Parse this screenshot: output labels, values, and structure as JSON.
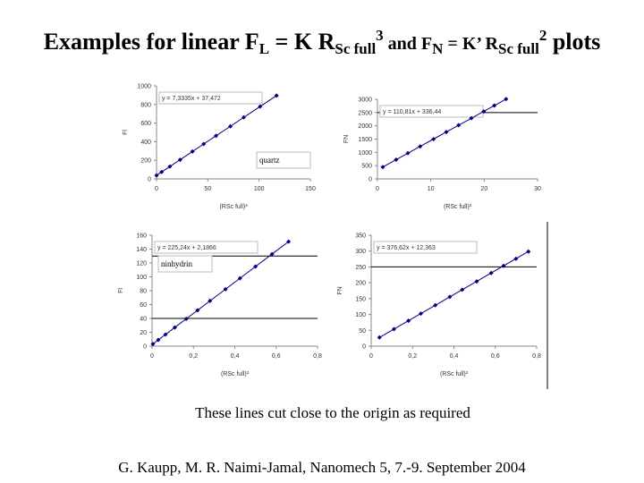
{
  "slide": {
    "title": [
      "Examples for linear F",
      "L",
      " = K R",
      "Sc full",
      "3",
      "  and   F",
      "N",
      " = K’ R",
      "Sc full",
      "2",
      " plots"
    ],
    "caption": "These lines cut close to the origin as required",
    "footer": "G. Kaupp, M. R. Naimi-Jamal, Nanomech 5, 7.-9. September 2004"
  },
  "chart_data": [
    {
      "type": "scatter",
      "equation": "y = 7,3335x + 37,472",
      "annotation": "quartz",
      "ylabel": "Fl",
      "xlabel": "(RSc full)³",
      "x": [
        0,
        5,
        13,
        23,
        35,
        46,
        58,
        72,
        85,
        101,
        117
      ],
      "values": [
        37.5,
        74,
        133,
        206,
        294,
        375,
        463,
        565,
        661,
        778,
        895
      ],
      "color": "#000080",
      "xlim": [
        0,
        150
      ],
      "xticks": [
        0,
        50,
        100,
        150
      ],
      "ylim": [
        0,
        1000
      ],
      "yticks": [
        0,
        200,
        400,
        600,
        800,
        1000
      ],
      "hlines": []
    },
    {
      "type": "scatter",
      "equation": "y = 110,81x + 336,44",
      "ylabel": "FN",
      "xlabel": "(RSc full)²",
      "x": [
        1,
        3.5,
        5.7,
        8,
        10.5,
        12.9,
        15.2,
        17.6,
        19.9,
        21.9,
        24.1
      ],
      "values": [
        447,
        724,
        968,
        1223,
        1500,
        1766,
        2021,
        2287,
        2541,
        2763,
        3007
      ],
      "color": "#000080",
      "xlim": [
        0,
        30
      ],
      "xticks": [
        0,
        10,
        20,
        30
      ],
      "ylim": [
        0,
        3000
      ],
      "yticks": [
        0,
        500,
        1000,
        1500,
        2000,
        2500,
        3000
      ],
      "hlines": [
        2500
      ]
    },
    {
      "type": "scatter",
      "equation": "y = 225,24x + 2,1866",
      "annotation": "ninhydrin",
      "ylabel": "Fl",
      "xlabel": "(RSc full)²",
      "x": [
        0.004,
        0.03,
        0.065,
        0.11,
        0.165,
        0.22,
        0.28,
        0.355,
        0.425,
        0.5,
        0.58,
        0.66
      ],
      "values": [
        3.1,
        9,
        16.8,
        27,
        39.4,
        51.7,
        65.3,
        82.1,
        97.9,
        114.8,
        132.8,
        150.8
      ],
      "color": "#000080",
      "xlim": [
        0,
        0.8
      ],
      "xticks": [
        0,
        {
          "value": 0.2,
          "label": "0,2"
        },
        {
          "value": 0.4,
          "label": "0,4"
        },
        {
          "value": 0.6,
          "label": "0,6"
        },
        {
          "value": 0.8,
          "label": "0,8"
        }
      ],
      "ylim": [
        0,
        160
      ],
      "yticks": [
        0,
        20,
        40,
        60,
        80,
        100,
        120,
        140,
        160
      ],
      "hlines": [
        130,
        40
      ]
    },
    {
      "type": "scatter",
      "equation": "y = 376,62x + 12,363",
      "ylabel": "FN",
      "xlabel": "(RSc full)²",
      "x": [
        0.04,
        0.11,
        0.18,
        0.24,
        0.31,
        0.38,
        0.44,
        0.51,
        0.58,
        0.64,
        0.7,
        0.76
      ],
      "values": [
        27.4,
        53.8,
        80.2,
        102.7,
        129.1,
        155.5,
        178.1,
        204.4,
        230.8,
        253.4,
        276,
        298.6
      ],
      "color": "#000080",
      "xlim": [
        0,
        0.8
      ],
      "xticks": [
        0,
        {
          "value": 0.2,
          "label": "0,2"
        },
        {
          "value": 0.4,
          "label": "0,4"
        },
        {
          "value": 0.6,
          "label": "0,6"
        },
        {
          "value": 0.8,
          "label": "0,8"
        }
      ],
      "ylim": [
        0,
        350
      ],
      "yticks": [
        0,
        50,
        100,
        150,
        200,
        250,
        300,
        350
      ],
      "hlines": [
        250
      ]
    }
  ]
}
